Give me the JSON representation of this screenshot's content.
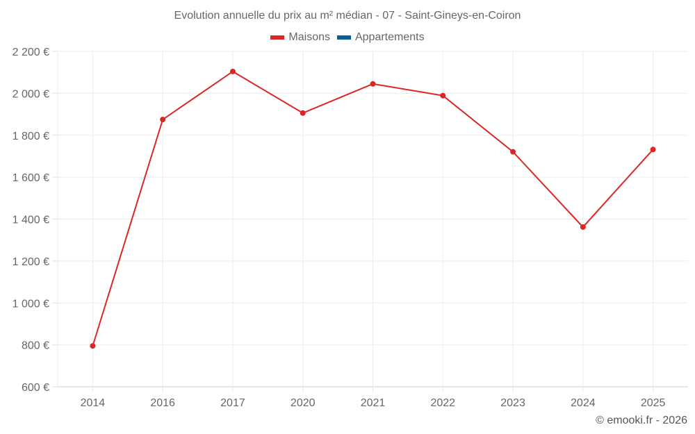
{
  "title": "Evolution annuelle du prix au m² médian - 07 - Saint-Gineys-en-Coiron",
  "legend": [
    {
      "label": "Maisons",
      "color": "#dc2626"
    },
    {
      "label": "Appartements",
      "color": "#075f99"
    }
  ],
  "credit": "© emooki.fr - 2026",
  "chart_data": {
    "type": "line",
    "title": "Evolution annuelle du prix au m² médian - 07 - Saint-Gineys-en-Coiron",
    "xlabel": "",
    "ylabel": "",
    "categories": [
      "2014",
      "2016",
      "2017",
      "2020",
      "2021",
      "2022",
      "2023",
      "2024",
      "2025"
    ],
    "series": [
      {
        "name": "Maisons",
        "color": "#dc2626",
        "values": [
          795,
          1875,
          2104,
          1906,
          2045,
          1989,
          1721,
          1362,
          1732
        ]
      },
      {
        "name": "Appartements",
        "color": "#075f99",
        "values": []
      }
    ],
    "ylim": [
      600,
      2200
    ],
    "yticks": [
      600,
      800,
      1000,
      1200,
      1400,
      1600,
      1800,
      2000,
      2200
    ],
    "ytick_labels": [
      "600 €",
      "800 €",
      "1 000 €",
      "1 200 €",
      "1 400 €",
      "1 600 €",
      "1 800 €",
      "2 000 €",
      "2 200 €"
    ],
    "grid": true,
    "legend_position": "top"
  }
}
